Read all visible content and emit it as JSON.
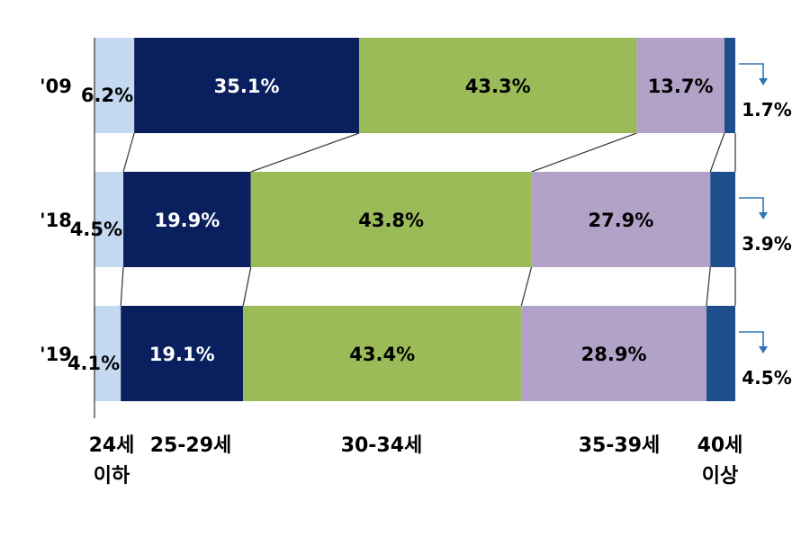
{
  "chart_data": {
    "type": "bar",
    "orientation": "horizontal",
    "stacked": "100%",
    "categories": [
      "'09",
      "'18",
      "'19"
    ],
    "series": [
      {
        "name": "24세 이하",
        "name_lines": [
          "24세",
          "이하"
        ],
        "values": [
          6.2,
          4.5,
          4.1
        ],
        "labels": [
          "6.2%",
          "4.5%",
          "4.1%"
        ],
        "color": "#c5d9f1",
        "label_color": "#000000"
      },
      {
        "name": "25-29세",
        "name_lines": [
          "25-29세"
        ],
        "values": [
          35.1,
          19.9,
          19.1
        ],
        "labels": [
          "35.1%",
          "19.9%",
          "19.1%"
        ],
        "color": "#0a205e",
        "label_color": "#ffffff"
      },
      {
        "name": "30-34세",
        "name_lines": [
          "30-34세"
        ],
        "values": [
          43.3,
          43.8,
          43.4
        ],
        "labels": [
          "43.3%",
          "43.8%",
          "43.4%"
        ],
        "color": "#9bbb59",
        "label_color": "#000000"
      },
      {
        "name": "35-39세",
        "name_lines": [
          "35-39세"
        ],
        "values": [
          13.7,
          27.9,
          28.9
        ],
        "labels": [
          "13.7%",
          "27.9%",
          "28.9%"
        ],
        "color": "#b2a2c7",
        "label_color": "#000000"
      },
      {
        "name": "40세 이상",
        "name_lines": [
          "40세",
          "이상"
        ],
        "values": [
          1.7,
          3.9,
          4.5
        ],
        "labels": [
          "1.7%",
          "3.9%",
          "4.5%"
        ],
        "color": "#1f4e8c",
        "label_color": "#000000"
      }
    ],
    "legend_placement": "bottom",
    "connector_lines": true,
    "callout_arrow_color": "#2e75b6",
    "axis_color": "#404040",
    "title": "",
    "xlabel": "",
    "ylabel": ""
  }
}
